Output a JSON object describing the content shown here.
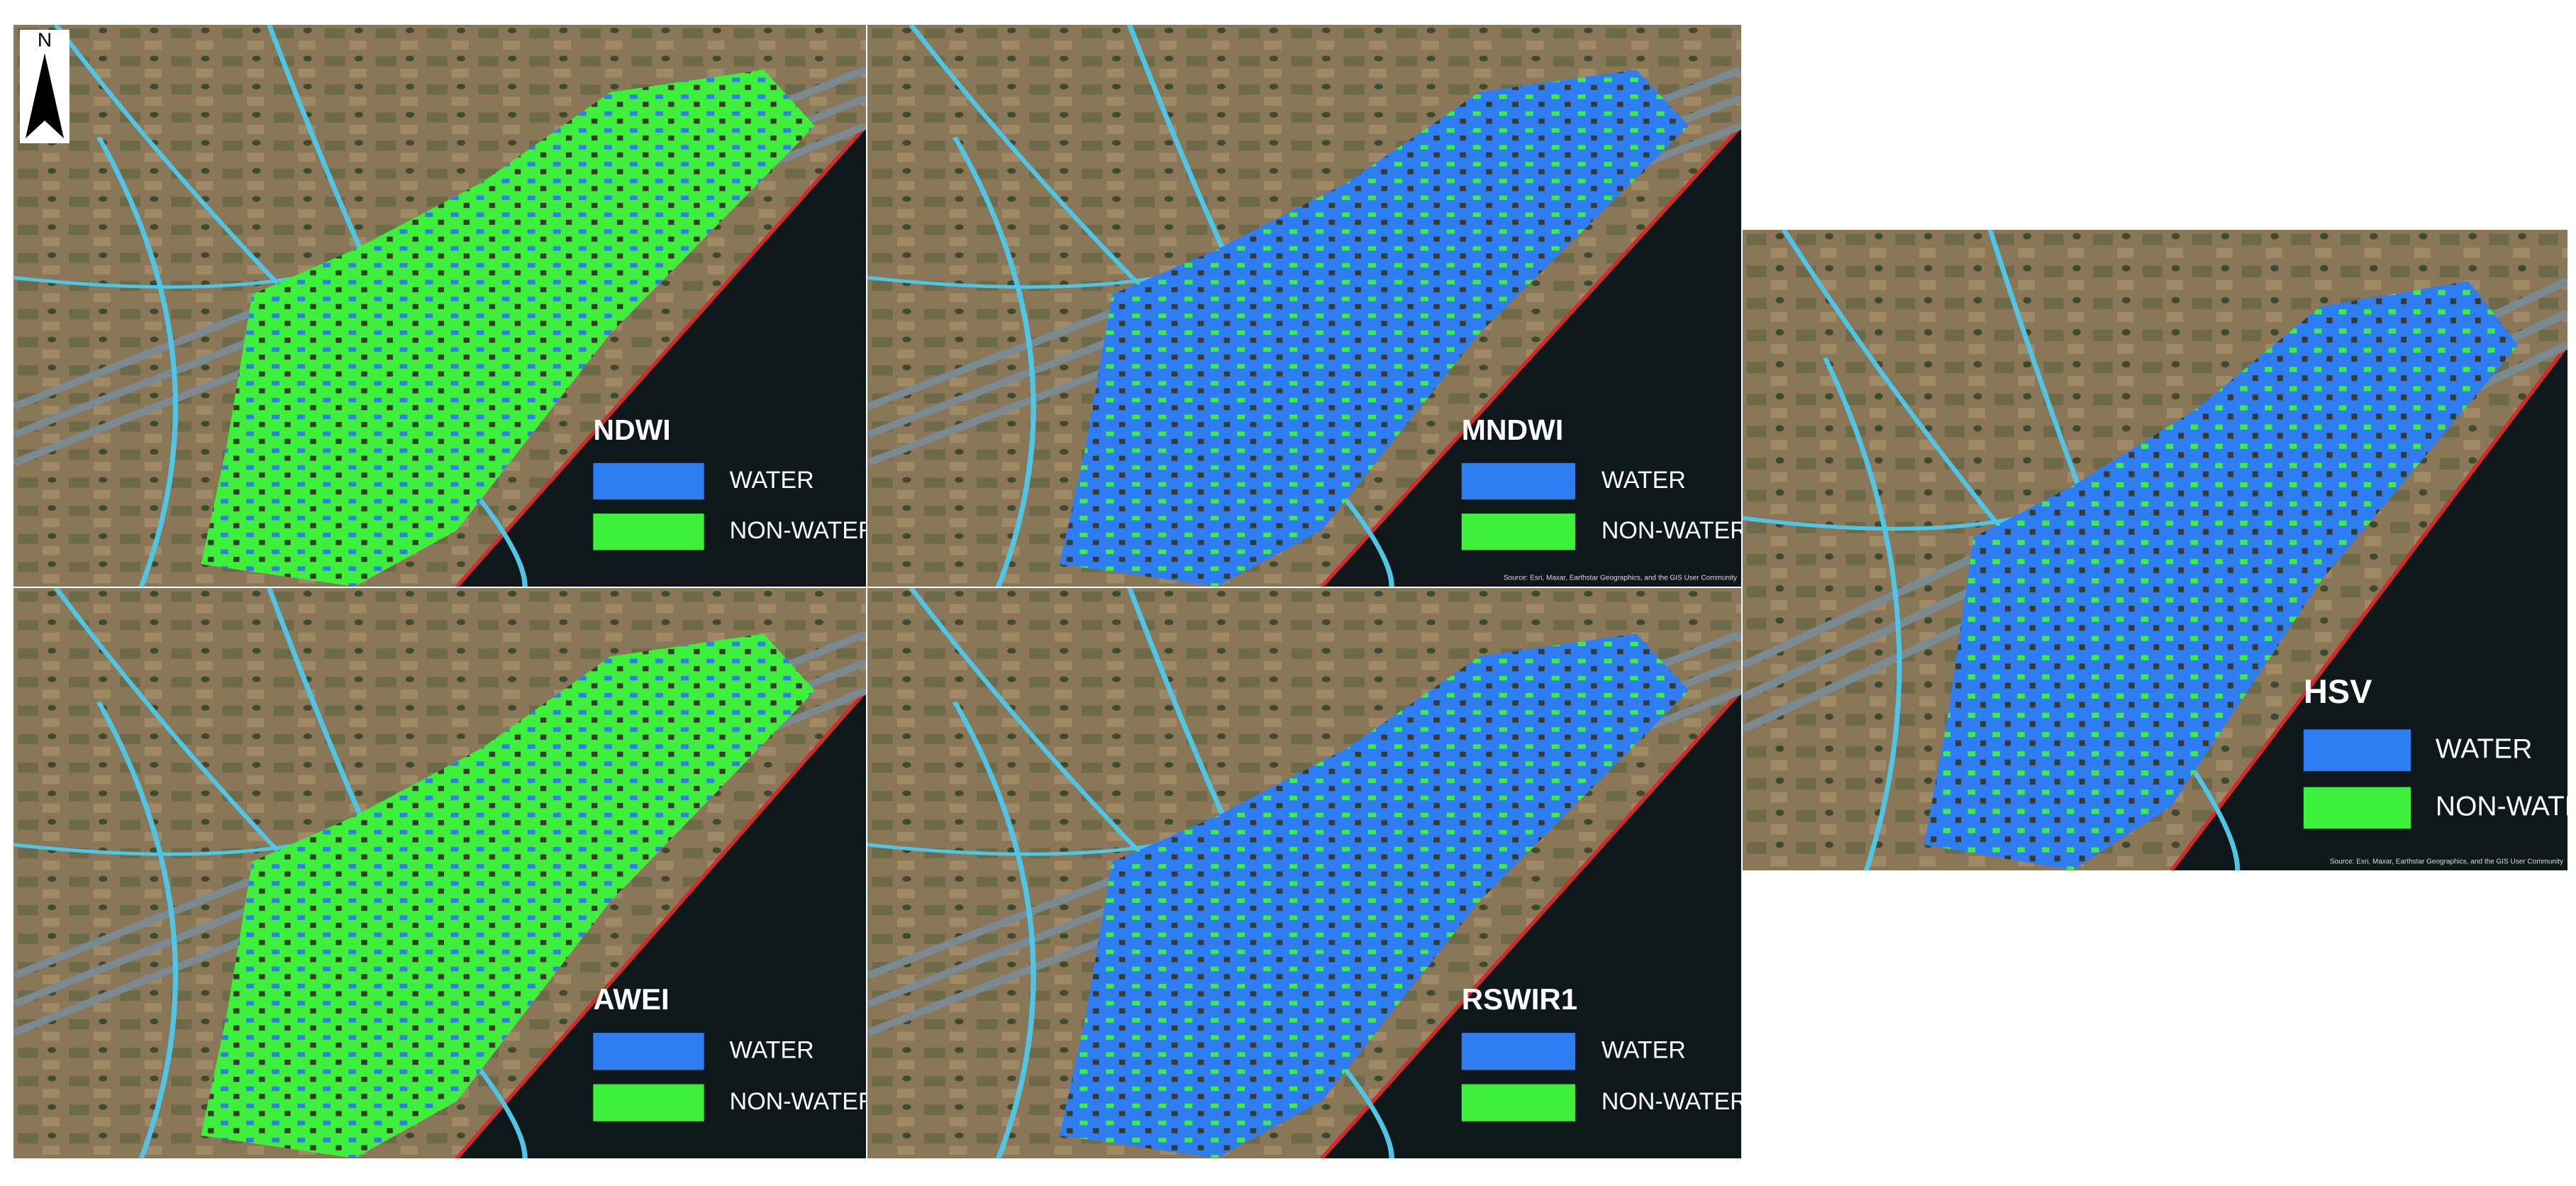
{
  "north_arrow": "N",
  "panels": [
    {
      "label": "NDWI",
      "legend": [
        {
          "text": "WATER",
          "color": "#2f7df2"
        },
        {
          "text": "NON-WATER",
          "color": "#3ef03c"
        }
      ]
    },
    {
      "label": "MNDWI",
      "legend": [
        {
          "text": "WATER",
          "color": "#2f7df2"
        },
        {
          "text": "NON-WATER",
          "color": "#3ef03c"
        }
      ],
      "attribution": "Source: Esri, Maxar, Earthstar Geographics, and the GIS User Community"
    },
    {
      "label": "HSV",
      "legend": [
        {
          "text": "WATER",
          "color": "#2f7df2"
        },
        {
          "text": "NON-WATER",
          "color": "#3ef03c"
        }
      ],
      "attribution": "Source: Esri, Maxar, Earthstar Geographics, and the GIS User Community"
    },
    {
      "label": "AWEI",
      "legend": [
        {
          "text": "WATER",
          "color": "#2f7df2"
        },
        {
          "text": "NON-WATER",
          "color": "#3ef03c"
        }
      ]
    },
    {
      "label": "RSWIR1",
      "legend": [
        {
          "text": "WATER",
          "color": "#2f7df2"
        },
        {
          "text": "NON-WATER",
          "color": "#3ef03c"
        }
      ]
    }
  ]
}
